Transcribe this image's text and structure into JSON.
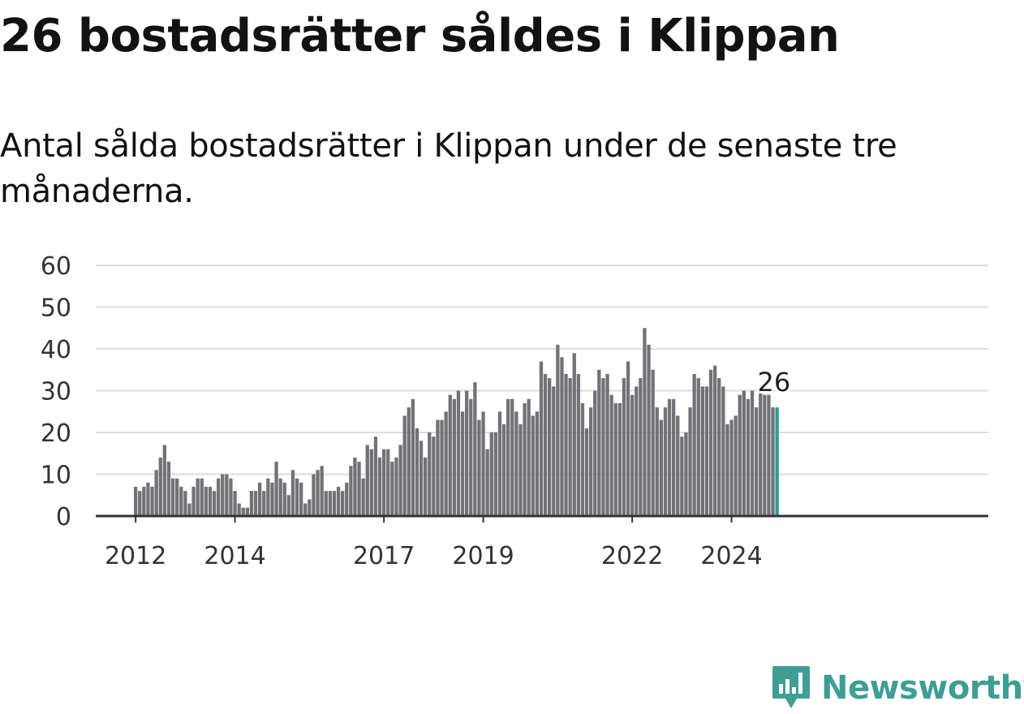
{
  "header": {
    "title": "26 bostadsrätter såldes i Klippan",
    "subtitle": "Antal sålda bostadsrätter i Klippan under de senaste tre månaderna."
  },
  "brand": {
    "name": "Newsworthy",
    "logo_icon": "newsworthy-logo-icon",
    "color": "#3e9e95"
  },
  "colors": {
    "bar": "#737278",
    "highlight": "#2a9d93",
    "grid": "#dddddd",
    "axis": "#333333",
    "text": "#333333"
  },
  "chart_data": {
    "type": "bar",
    "title": "",
    "xlabel": "",
    "ylabel": "",
    "ylim": [
      0,
      60
    ],
    "yticks": [
      0,
      10,
      20,
      30,
      40,
      50,
      60
    ],
    "xtick_labels": [
      {
        "label": "2012",
        "index": 0
      },
      {
        "label": "2014",
        "index": 24
      },
      {
        "label": "2017",
        "index": 60
      },
      {
        "label": "2019",
        "index": 84
      },
      {
        "label": "2022",
        "index": 120
      },
      {
        "label": "2024",
        "index": 144
      }
    ],
    "grid": true,
    "highlight_last": true,
    "annotation": "26",
    "values": [
      7,
      6,
      7,
      8,
      7,
      11,
      14,
      17,
      13,
      9,
      9,
      7,
      6,
      3,
      7,
      9,
      9,
      7,
      7,
      6,
      9,
      10,
      10,
      9,
      6,
      3,
      2,
      2,
      6,
      6,
      8,
      6,
      9,
      8,
      13,
      9,
      8,
      5,
      11,
      9,
      8,
      3,
      4,
      10,
      11,
      12,
      6,
      6,
      6,
      7,
      6,
      8,
      12,
      14,
      13,
      9,
      17,
      16,
      19,
      14,
      16,
      16,
      13,
      14,
      17,
      24,
      26,
      28,
      21,
      18,
      14,
      20,
      19,
      23,
      23,
      25,
      29,
      28,
      30,
      25,
      30,
      28,
      32,
      23,
      25,
      16,
      20,
      20,
      25,
      22,
      28,
      28,
      25,
      22,
      27,
      28,
      24,
      25,
      37,
      34,
      33,
      31,
      41,
      38,
      34,
      33,
      39,
      34,
      27,
      21,
      26,
      30,
      35,
      33,
      34,
      29,
      27,
      27,
      33,
      37,
      29,
      31,
      33,
      45,
      41,
      35,
      26,
      23,
      26,
      28,
      28,
      24,
      19,
      20,
      26,
      34,
      33,
      31,
      31,
      35,
      36,
      33,
      31,
      22,
      23,
      24,
      29,
      30,
      28,
      30,
      26,
      31,
      29,
      29,
      26,
      26
    ]
  }
}
